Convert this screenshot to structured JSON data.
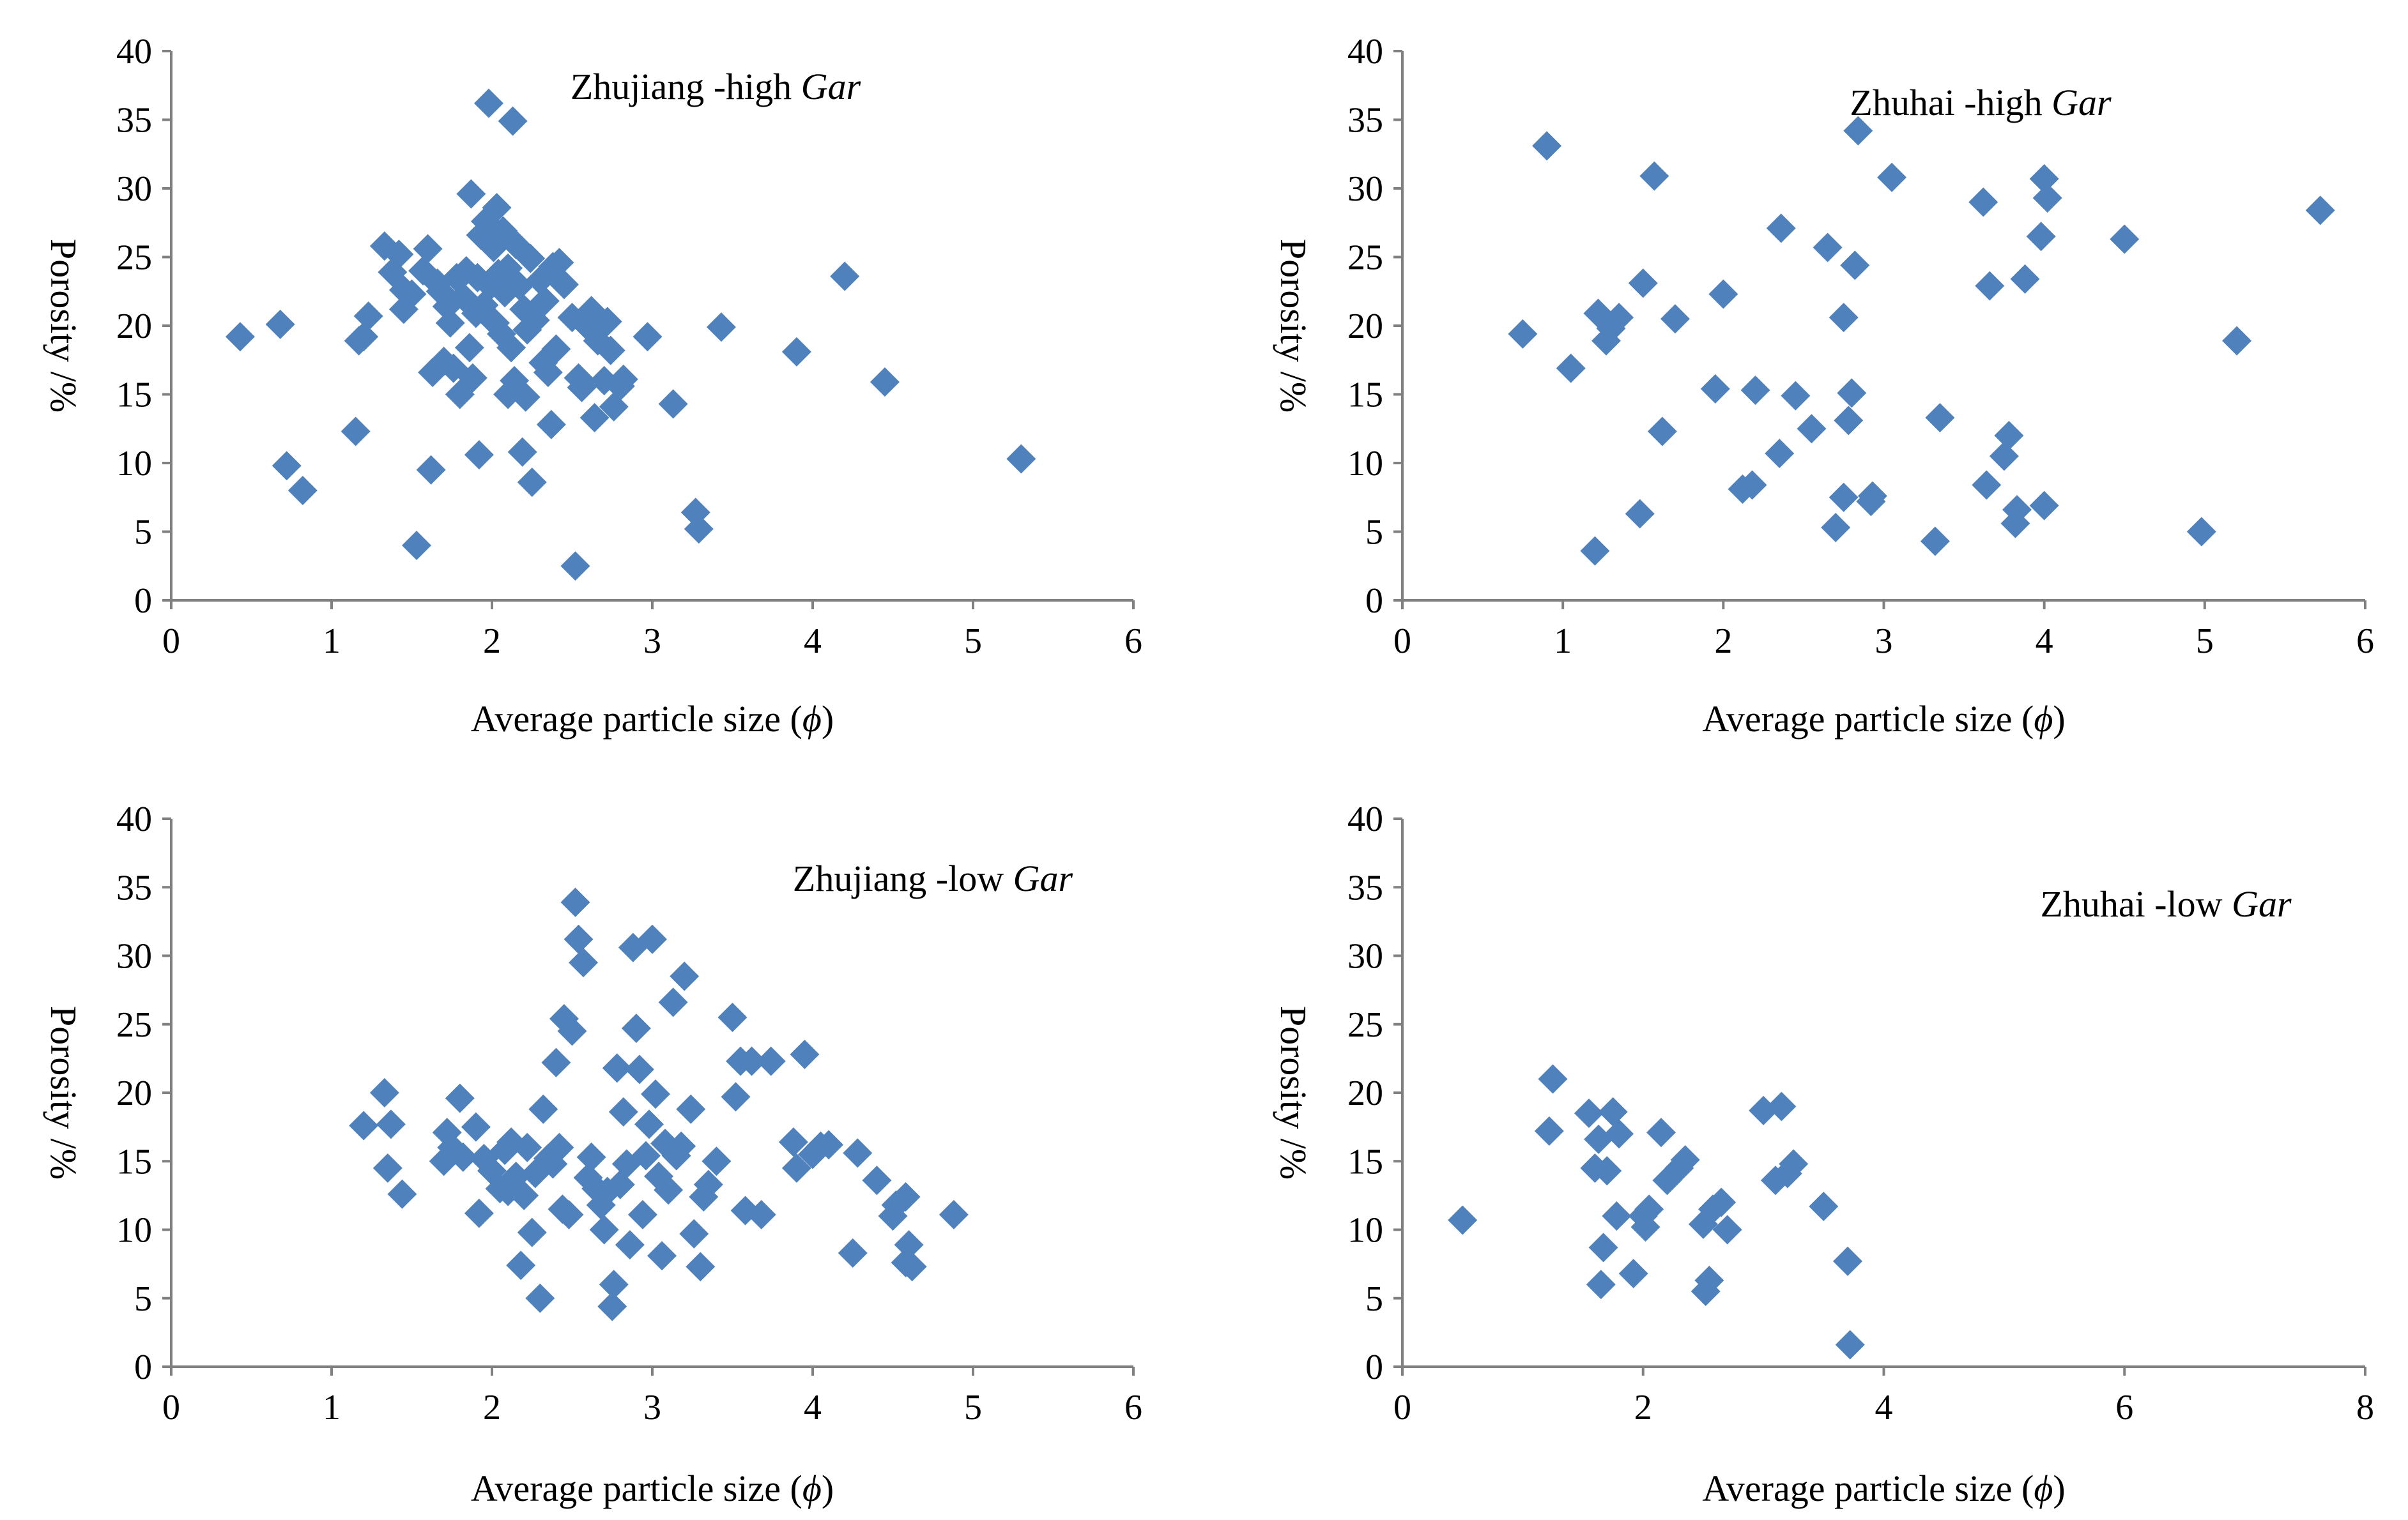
{
  "figure": {
    "marker_color": "#4F81BD",
    "axis_color": "#808080",
    "text_color": "#000000"
  },
  "chart_data": [
    {
      "type": "scatter",
      "label": "Zhujiang -high ",
      "label_italic": "Gar",
      "xlabel": "Average particle size (",
      "xlabel_symbol": "ϕ",
      "xlabel_end": ")",
      "ylabel": "Porosity /%",
      "xlim": [
        0,
        6
      ],
      "ylim": [
        0,
        40
      ],
      "xticks": [
        0,
        1,
        2,
        3,
        4,
        5,
        6
      ],
      "yticks": [
        0,
        5,
        10,
        15,
        20,
        25,
        30,
        35,
        40
      ],
      "points": [
        [
          0.43,
          19.2
        ],
        [
          0.68,
          20.1
        ],
        [
          0.72,
          9.8
        ],
        [
          0.82,
          8.0
        ],
        [
          1.15,
          12.3
        ],
        [
          1.17,
          18.9
        ],
        [
          1.2,
          19.2
        ],
        [
          1.23,
          20.7
        ],
        [
          1.33,
          25.8
        ],
        [
          1.38,
          23.9
        ],
        [
          1.42,
          25.2
        ],
        [
          1.45,
          22.6
        ],
        [
          1.45,
          21.2
        ],
        [
          1.5,
          22.3
        ],
        [
          1.53,
          4.0
        ],
        [
          1.57,
          24.0
        ],
        [
          1.6,
          25.6
        ],
        [
          1.62,
          9.5
        ],
        [
          1.63,
          16.6
        ],
        [
          1.66,
          23.1
        ],
        [
          1.68,
          22.5
        ],
        [
          1.7,
          17.4
        ],
        [
          1.72,
          21.4
        ],
        [
          1.74,
          20.2
        ],
        [
          1.76,
          16.9
        ],
        [
          1.78,
          23.5
        ],
        [
          1.8,
          15.0
        ],
        [
          1.82,
          22.1
        ],
        [
          1.84,
          24.0
        ],
        [
          1.86,
          18.4
        ],
        [
          1.87,
          29.6
        ],
        [
          1.88,
          16.2
        ],
        [
          1.9,
          20.9
        ],
        [
          1.91,
          23.5
        ],
        [
          1.92,
          10.6
        ],
        [
          1.93,
          26.6
        ],
        [
          1.95,
          21.5
        ],
        [
          1.96,
          27.6
        ],
        [
          1.98,
          36.2
        ],
        [
          1.99,
          22.9
        ],
        [
          2.01,
          25.7
        ],
        [
          2.02,
          20.2
        ],
        [
          2.03,
          28.6
        ],
        [
          2.04,
          23.8
        ],
        [
          2.06,
          19.4
        ],
        [
          2.07,
          26.9
        ],
        [
          2.08,
          22.4
        ],
        [
          2.1,
          15.0
        ],
        [
          2.1,
          24.2
        ],
        [
          2.12,
          18.4
        ],
        [
          2.13,
          34.9
        ],
        [
          2.14,
          16.0
        ],
        [
          2.15,
          25.9
        ],
        [
          2.17,
          22.9
        ],
        [
          2.19,
          10.8
        ],
        [
          2.2,
          21.2
        ],
        [
          2.21,
          14.8
        ],
        [
          2.22,
          19.7
        ],
        [
          2.24,
          24.9
        ],
        [
          2.25,
          8.6
        ],
        [
          2.27,
          20.4
        ],
        [
          2.3,
          23.3
        ],
        [
          2.32,
          17.3
        ],
        [
          2.33,
          21.8
        ],
        [
          2.35,
          16.6
        ],
        [
          2.37,
          12.8
        ],
        [
          2.38,
          24.3
        ],
        [
          2.4,
          18.3
        ],
        [
          2.42,
          24.6
        ],
        [
          2.45,
          23.0
        ],
        [
          2.5,
          20.6
        ],
        [
          2.52,
          2.5
        ],
        [
          2.54,
          16.2
        ],
        [
          2.56,
          15.5
        ],
        [
          2.6,
          19.9
        ],
        [
          2.62,
          21.1
        ],
        [
          2.64,
          13.3
        ],
        [
          2.66,
          18.9
        ],
        [
          2.7,
          16.0
        ],
        [
          2.72,
          20.3
        ],
        [
          2.74,
          18.2
        ],
        [
          2.76,
          14.1
        ],
        [
          2.8,
          15.6
        ],
        [
          2.82,
          16.1
        ],
        [
          2.97,
          19.2
        ],
        [
          3.13,
          14.3
        ],
        [
          3.27,
          6.4
        ],
        [
          3.29,
          5.2
        ],
        [
          3.43,
          19.9
        ],
        [
          3.9,
          18.1
        ],
        [
          4.2,
          23.6
        ],
        [
          4.45,
          15.9
        ],
        [
          5.3,
          10.3
        ]
      ]
    },
    {
      "type": "scatter",
      "label": "Zhuhai -high ",
      "label_italic": "Gar",
      "xlabel": "Average particle size (",
      "xlabel_symbol": "ϕ",
      "xlabel_end": ")",
      "ylabel": "Porosity /%",
      "xlim": [
        0,
        6
      ],
      "ylim": [
        0,
        40
      ],
      "xticks": [
        0,
        1,
        2,
        3,
        4,
        5,
        6
      ],
      "yticks": [
        0,
        5,
        10,
        15,
        20,
        25,
        30,
        35,
        40
      ],
      "points": [
        [
          0.75,
          19.4
        ],
        [
          0.9,
          33.1
        ],
        [
          1.05,
          16.9
        ],
        [
          1.2,
          3.6
        ],
        [
          1.22,
          20.9
        ],
        [
          1.27,
          18.9
        ],
        [
          1.3,
          19.8
        ],
        [
          1.35,
          20.6
        ],
        [
          1.48,
          6.3
        ],
        [
          1.5,
          23.1
        ],
        [
          1.57,
          30.9
        ],
        [
          1.62,
          12.3
        ],
        [
          1.7,
          20.5
        ],
        [
          1.95,
          15.4
        ],
        [
          2.0,
          22.3
        ],
        [
          2.12,
          8.1
        ],
        [
          2.18,
          8.4
        ],
        [
          2.2,
          15.3
        ],
        [
          2.35,
          10.7
        ],
        [
          2.36,
          27.1
        ],
        [
          2.45,
          14.9
        ],
        [
          2.55,
          12.5
        ],
        [
          2.65,
          25.7
        ],
        [
          2.7,
          5.3
        ],
        [
          2.75,
          7.5
        ],
        [
          2.75,
          20.6
        ],
        [
          2.78,
          13.1
        ],
        [
          2.8,
          15.1
        ],
        [
          2.82,
          24.4
        ],
        [
          2.84,
          34.2
        ],
        [
          2.92,
          7.2
        ],
        [
          2.93,
          7.6
        ],
        [
          3.05,
          30.8
        ],
        [
          3.32,
          4.3
        ],
        [
          3.35,
          13.3
        ],
        [
          3.62,
          29.0
        ],
        [
          3.64,
          8.4
        ],
        [
          3.66,
          22.9
        ],
        [
          3.75,
          10.5
        ],
        [
          3.78,
          12.0
        ],
        [
          3.82,
          5.6
        ],
        [
          3.83,
          6.6
        ],
        [
          3.88,
          23.4
        ],
        [
          3.98,
          26.5
        ],
        [
          4.0,
          30.7
        ],
        [
          4.0,
          6.9
        ],
        [
          4.02,
          29.3
        ],
        [
          4.5,
          26.3
        ],
        [
          4.98,
          5.0
        ],
        [
          5.2,
          18.9
        ],
        [
          5.72,
          28.4
        ]
      ]
    },
    {
      "type": "scatter",
      "label": "Zhujiang -low ",
      "label_italic": "Gar",
      "xlabel": "Average particle size (",
      "xlabel_symbol": "ϕ",
      "xlabel_end": ")",
      "ylabel": "Porosity /%",
      "xlim": [
        0,
        6
      ],
      "ylim": [
        0,
        40
      ],
      "xticks": [
        0,
        1,
        2,
        3,
        4,
        5,
        6
      ],
      "yticks": [
        0,
        5,
        10,
        15,
        20,
        25,
        30,
        35,
        40
      ],
      "points": [
        [
          1.2,
          17.6
        ],
        [
          1.33,
          20.0
        ],
        [
          1.35,
          14.5
        ],
        [
          1.37,
          17.7
        ],
        [
          1.44,
          12.6
        ],
        [
          1.7,
          15.0
        ],
        [
          1.72,
          17.1
        ],
        [
          1.75,
          16.0
        ],
        [
          1.8,
          19.6
        ],
        [
          1.82,
          15.3
        ],
        [
          1.9,
          17.5
        ],
        [
          1.92,
          11.2
        ],
        [
          1.95,
          15.2
        ],
        [
          2.0,
          14.3
        ],
        [
          2.05,
          13.0
        ],
        [
          2.08,
          15.8
        ],
        [
          2.1,
          12.8
        ],
        [
          2.12,
          16.4
        ],
        [
          2.15,
          13.9
        ],
        [
          2.18,
          7.4
        ],
        [
          2.2,
          12.5
        ],
        [
          2.22,
          16.0
        ],
        [
          2.25,
          9.8
        ],
        [
          2.27,
          14.1
        ],
        [
          2.3,
          5.0
        ],
        [
          2.32,
          18.8
        ],
        [
          2.35,
          15.2
        ],
        [
          2.38,
          14.8
        ],
        [
          2.4,
          22.2
        ],
        [
          2.42,
          16.0
        ],
        [
          2.44,
          11.5
        ],
        [
          2.45,
          25.4
        ],
        [
          2.48,
          11.1
        ],
        [
          2.5,
          24.5
        ],
        [
          2.52,
          33.9
        ],
        [
          2.54,
          31.2
        ],
        [
          2.57,
          29.5
        ],
        [
          2.6,
          13.8
        ],
        [
          2.62,
          15.3
        ],
        [
          2.65,
          13.0
        ],
        [
          2.68,
          11.8
        ],
        [
          2.7,
          10.0
        ],
        [
          2.72,
          12.8
        ],
        [
          2.75,
          4.4
        ],
        [
          2.76,
          6.0
        ],
        [
          2.78,
          21.8
        ],
        [
          2.8,
          13.3
        ],
        [
          2.82,
          18.6
        ],
        [
          2.84,
          14.8
        ],
        [
          2.86,
          8.9
        ],
        [
          2.88,
          30.6
        ],
        [
          2.9,
          24.7
        ],
        [
          2.92,
          21.7
        ],
        [
          2.94,
          11.1
        ],
        [
          2.96,
          15.4
        ],
        [
          2.98,
          17.7
        ],
        [
          3.0,
          31.2
        ],
        [
          3.02,
          19.9
        ],
        [
          3.04,
          13.9
        ],
        [
          3.06,
          8.1
        ],
        [
          3.08,
          16.3
        ],
        [
          3.1,
          12.9
        ],
        [
          3.13,
          26.6
        ],
        [
          3.15,
          15.4
        ],
        [
          3.18,
          16.1
        ],
        [
          3.2,
          28.5
        ],
        [
          3.24,
          18.8
        ],
        [
          3.26,
          9.7
        ],
        [
          3.3,
          7.3
        ],
        [
          3.32,
          12.4
        ],
        [
          3.35,
          13.3
        ],
        [
          3.4,
          15.0
        ],
        [
          3.5,
          25.5
        ],
        [
          3.52,
          19.7
        ],
        [
          3.55,
          22.3
        ],
        [
          3.58,
          11.4
        ],
        [
          3.62,
          22.3
        ],
        [
          3.68,
          11.1
        ],
        [
          3.74,
          22.3
        ],
        [
          3.88,
          16.4
        ],
        [
          3.9,
          14.5
        ],
        [
          3.95,
          22.8
        ],
        [
          4.0,
          15.5
        ],
        [
          4.05,
          16.1
        ],
        [
          4.1,
          16.2
        ],
        [
          4.25,
          8.3
        ],
        [
          4.28,
          15.6
        ],
        [
          4.4,
          13.6
        ],
        [
          4.5,
          11.0
        ],
        [
          4.52,
          11.8
        ],
        [
          4.58,
          12.4
        ],
        [
          4.58,
          7.6
        ],
        [
          4.6,
          8.9
        ],
        [
          4.62,
          7.3
        ],
        [
          4.88,
          11.1
        ]
      ]
    },
    {
      "type": "scatter",
      "label": "Zhuhai -low ",
      "label_italic": "Gar",
      "xlabel": "Average particle size (",
      "xlabel_symbol": "ϕ",
      "xlabel_end": ")",
      "ylabel": "Porosity /%",
      "xlim": [
        0,
        8
      ],
      "ylim": [
        0,
        40
      ],
      "xticks": [
        0,
        2,
        4,
        6,
        8
      ],
      "yticks": [
        0,
        5,
        10,
        15,
        20,
        25,
        30,
        35,
        40
      ],
      "points": [
        [
          0.5,
          10.7
        ],
        [
          1.22,
          17.2
        ],
        [
          1.25,
          21.0
        ],
        [
          1.55,
          18.5
        ],
        [
          1.6,
          14.5
        ],
        [
          1.63,
          16.6
        ],
        [
          1.65,
          6.0
        ],
        [
          1.67,
          8.7
        ],
        [
          1.7,
          14.3
        ],
        [
          1.75,
          18.6
        ],
        [
          1.78,
          11.0
        ],
        [
          1.8,
          17.0
        ],
        [
          1.92,
          6.8
        ],
        [
          2.0,
          11.0
        ],
        [
          2.02,
          10.2
        ],
        [
          2.05,
          11.5
        ],
        [
          2.15,
          17.1
        ],
        [
          2.2,
          13.6
        ],
        [
          2.3,
          14.5
        ],
        [
          2.35,
          15.1
        ],
        [
          2.5,
          10.4
        ],
        [
          2.52,
          5.5
        ],
        [
          2.55,
          6.3
        ],
        [
          2.58,
          11.5
        ],
        [
          2.65,
          12.0
        ],
        [
          2.7,
          10.0
        ],
        [
          3.0,
          18.7
        ],
        [
          3.1,
          13.6
        ],
        [
          3.15,
          19.0
        ],
        [
          3.2,
          14.1
        ],
        [
          3.25,
          14.8
        ],
        [
          3.5,
          11.7
        ],
        [
          3.7,
          7.7
        ],
        [
          3.72,
          1.6
        ]
      ]
    }
  ]
}
